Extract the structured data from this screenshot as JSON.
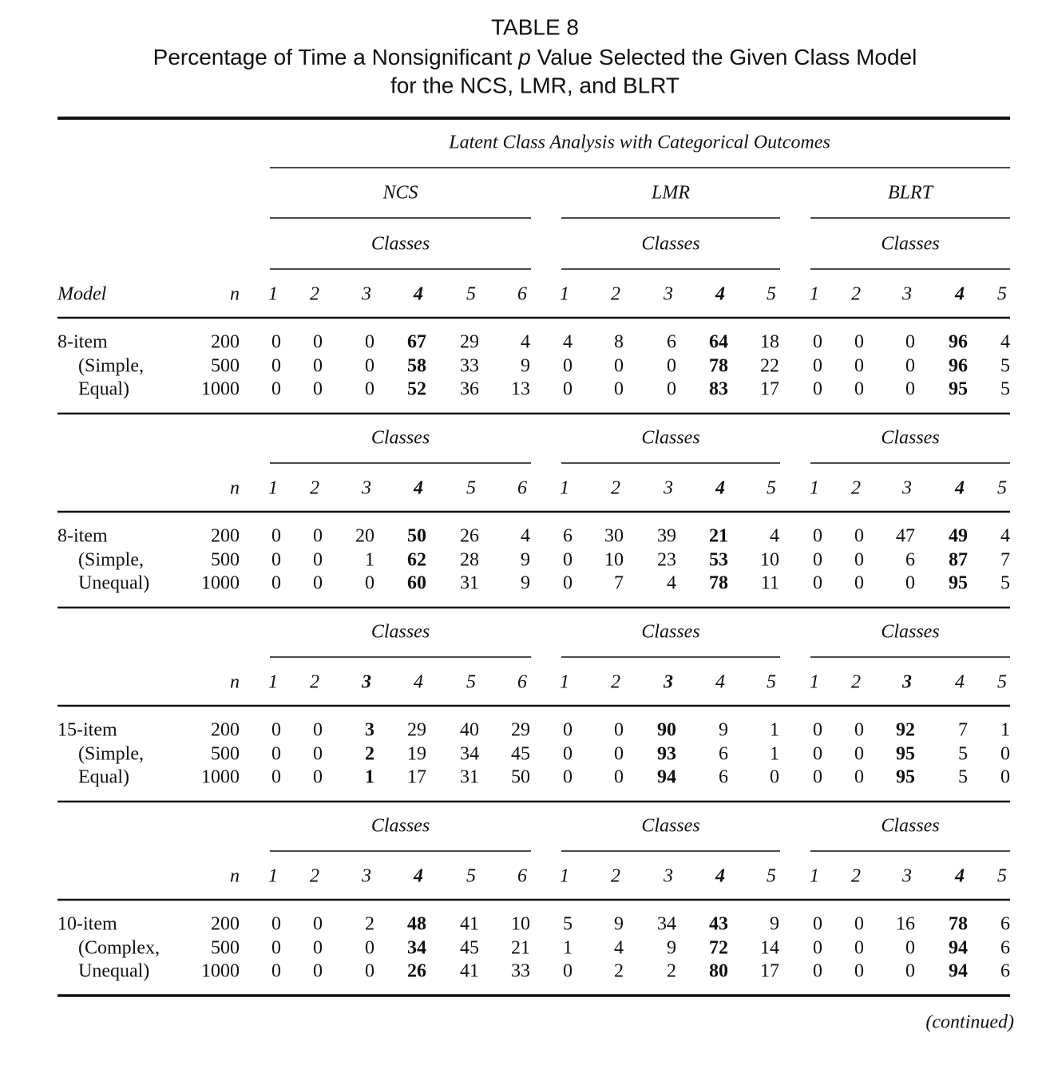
{
  "title": "TABLE 8",
  "subtitle": {
    "before": "Percentage of Time a Nonsignificant",
    "italic": "p",
    "after": "Value Selected the Given Class Model",
    "line2": "for the NCS, LMR, and BLRT"
  },
  "spanner": "Latent Class Analysis with Categorical Outcomes",
  "methods": [
    "NCS",
    "LMR",
    "BLRT"
  ],
  "model_header": "Model",
  "blocks": [
    {
      "classes_labels": [
        "Classes",
        "Classes",
        "Classes"
      ],
      "n_label": "n",
      "columns": [
        1,
        2,
        3,
        4,
        5,
        6,
        1,
        2,
        3,
        4,
        5,
        1,
        2,
        3,
        4,
        5
      ],
      "bold_columns": [
        3,
        9,
        14
      ],
      "rows": [
        {
          "model": "8-item",
          "n": 200,
          "values": [
            0,
            0,
            0,
            67,
            29,
            4,
            4,
            8,
            6,
            64,
            18,
            0,
            0,
            0,
            96,
            4
          ]
        },
        {
          "model": "(Simple,",
          "n": 500,
          "values": [
            0,
            0,
            0,
            58,
            33,
            9,
            0,
            0,
            0,
            78,
            22,
            0,
            0,
            0,
            96,
            5
          ]
        },
        {
          "model": "Equal)",
          "n": 1000,
          "values": [
            0,
            0,
            0,
            52,
            36,
            13,
            0,
            0,
            0,
            83,
            17,
            0,
            0,
            0,
            95,
            5
          ]
        }
      ]
    },
    {
      "classes_labels": [
        "Classes",
        "Classes",
        "Classes"
      ],
      "n_label": "n",
      "columns": [
        1,
        2,
        3,
        4,
        5,
        6,
        1,
        2,
        3,
        4,
        5,
        1,
        2,
        3,
        4,
        5
      ],
      "bold_columns": [
        3,
        9,
        14
      ],
      "rows": [
        {
          "model": "8-item",
          "n": 200,
          "values": [
            0,
            0,
            20,
            50,
            26,
            4,
            6,
            30,
            39,
            21,
            4,
            0,
            0,
            47,
            49,
            4
          ]
        },
        {
          "model": "(Simple,",
          "n": 500,
          "values": [
            0,
            0,
            1,
            62,
            28,
            9,
            0,
            10,
            23,
            53,
            10,
            0,
            0,
            6,
            87,
            7
          ]
        },
        {
          "model": "Unequal)",
          "n": 1000,
          "values": [
            0,
            0,
            0,
            60,
            31,
            9,
            0,
            7,
            4,
            78,
            11,
            0,
            0,
            0,
            95,
            5
          ]
        }
      ]
    },
    {
      "classes_labels": [
        "Classes",
        "Classes",
        "Classes"
      ],
      "n_label": "n",
      "columns": [
        1,
        2,
        3,
        4,
        5,
        6,
        1,
        2,
        3,
        4,
        5,
        1,
        2,
        3,
        4,
        5
      ],
      "bold_columns": [
        2,
        8,
        13
      ],
      "rows": [
        {
          "model": "15-item",
          "n": 200,
          "values": [
            0,
            0,
            3,
            29,
            40,
            29,
            0,
            0,
            90,
            9,
            1,
            0,
            0,
            92,
            7,
            1
          ]
        },
        {
          "model": "(Simple,",
          "n": 500,
          "values": [
            0,
            0,
            2,
            19,
            34,
            45,
            0,
            0,
            93,
            6,
            1,
            0,
            0,
            95,
            5,
            0
          ]
        },
        {
          "model": "Equal)",
          "n": 1000,
          "values": [
            0,
            0,
            1,
            17,
            31,
            50,
            0,
            0,
            94,
            6,
            0,
            0,
            0,
            95,
            5,
            0
          ]
        }
      ]
    },
    {
      "classes_labels": [
        "Classes",
        "Classes",
        "Classes"
      ],
      "n_label": "n",
      "columns": [
        1,
        2,
        3,
        4,
        5,
        6,
        1,
        2,
        3,
        4,
        5,
        1,
        2,
        3,
        4,
        5
      ],
      "bold_columns": [
        3,
        9,
        14
      ],
      "rows": [
        {
          "model": "10-item",
          "n": 200,
          "values": [
            0,
            0,
            2,
            48,
            41,
            10,
            5,
            9,
            34,
            43,
            9,
            0,
            0,
            16,
            78,
            6
          ]
        },
        {
          "model": "(Complex,",
          "n": 500,
          "values": [
            0,
            0,
            0,
            34,
            45,
            21,
            1,
            4,
            9,
            72,
            14,
            0,
            0,
            0,
            94,
            6
          ]
        },
        {
          "model": "Unequal)",
          "n": 1000,
          "values": [
            0,
            0,
            0,
            26,
            41,
            33,
            0,
            2,
            2,
            80,
            17,
            0,
            0,
            0,
            94,
            6
          ]
        }
      ]
    }
  ],
  "footer": "(continued)"
}
